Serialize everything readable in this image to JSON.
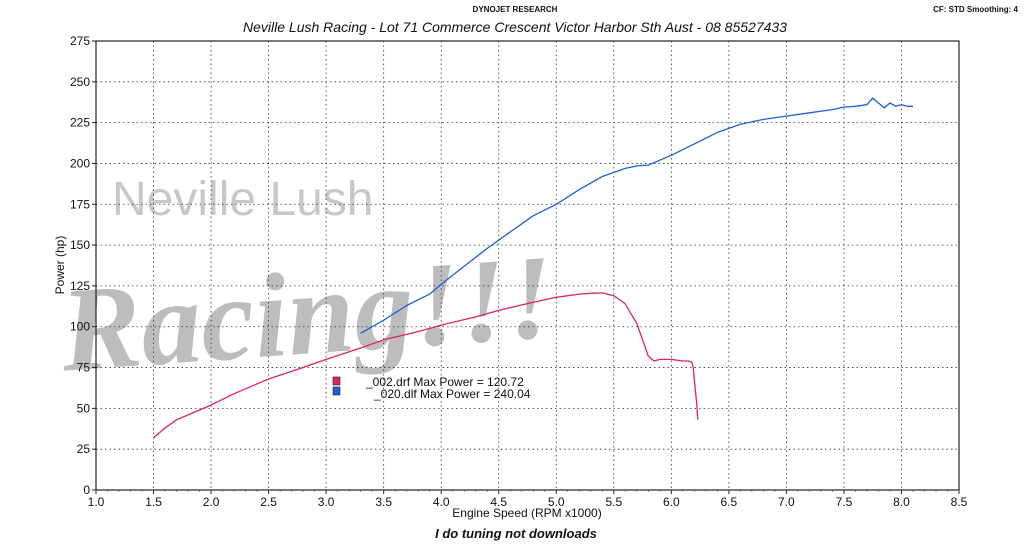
{
  "header": {
    "brand": "DYNOJET RESEARCH",
    "settings": "CF: STD  Smoothing: 4",
    "title": "Neville Lush Racing  - Lot 71 Commerce Crescent  Victor Harbor Sth Aust  - 08 85527433"
  },
  "watermark": {
    "line1": "Neville Lush",
    "line2": "Racing!!!"
  },
  "footer": "I do tuning not downloads",
  "colors": {
    "series_002": "#e0245e",
    "series_020": "#1f5fd6",
    "grid": "#333333"
  },
  "chart_data": {
    "type": "line",
    "xlabel": "Engine Speed (RPM x1000)",
    "ylabel": "Power (hp)",
    "xlim": [
      1.0,
      8.5
    ],
    "ylim": [
      0,
      275
    ],
    "xticks": [
      "1.0",
      "1.5",
      "2.0",
      "2.5",
      "3.0",
      "3.5",
      "4.0",
      "4.5",
      "5.0",
      "5.5",
      "6.0",
      "6.5",
      "7.0",
      "7.5",
      "8.0",
      "8.5"
    ],
    "yticks": [
      "0",
      "25",
      "50",
      "75",
      "100",
      "125",
      "150",
      "175",
      "200",
      "225",
      "250",
      "275"
    ],
    "grid": true,
    "legend_position": "center-left",
    "legend": [
      {
        "label": "_002.drf Max Power = 120.72",
        "series": 0
      },
      {
        "label": "_020.dlf Max Power = 240.04",
        "series": 1
      }
    ],
    "series": [
      {
        "color": "#e0245e",
        "x": [
          1.5,
          1.6,
          1.7,
          1.8,
          2.0,
          2.2,
          2.5,
          2.8,
          3.0,
          3.3,
          3.5,
          3.8,
          4.0,
          4.3,
          4.5,
          4.8,
          5.0,
          5.2,
          5.3,
          5.4,
          5.5,
          5.6,
          5.7,
          5.75,
          5.8,
          5.85,
          5.9,
          6.0,
          6.1,
          6.15,
          6.18,
          6.19,
          6.2,
          6.21,
          6.22,
          6.23
        ],
        "y": [
          32,
          38,
          43,
          46,
          52,
          59,
          68,
          75,
          80,
          87,
          92,
          97,
          101,
          106,
          110,
          115,
          118,
          120,
          120.5,
          120.72,
          119,
          114,
          102,
          92,
          82,
          79,
          80,
          80,
          79,
          79,
          78,
          75,
          68,
          60,
          54,
          43
        ]
      },
      {
        "color": "#1f5fd6",
        "x": [
          3.3,
          3.4,
          3.5,
          3.7,
          3.9,
          4.0,
          4.2,
          4.4,
          4.6,
          4.8,
          5.0,
          5.2,
          5.4,
          5.6,
          5.7,
          5.8,
          5.9,
          6.0,
          6.2,
          6.4,
          6.6,
          6.8,
          7.0,
          7.2,
          7.4,
          7.5,
          7.6,
          7.7,
          7.75,
          7.8,
          7.85,
          7.9,
          7.95,
          8.0,
          8.05,
          8.1
        ],
        "y": [
          96,
          100,
          104,
          113,
          120,
          126,
          137,
          148,
          158,
          168,
          175,
          184,
          192,
          197,
          198.5,
          199,
          202,
          205,
          212,
          219,
          224,
          227,
          229,
          231,
          233,
          234.5,
          235,
          236,
          240.04,
          237,
          234,
          237,
          235,
          236,
          235,
          235
        ]
      }
    ]
  }
}
